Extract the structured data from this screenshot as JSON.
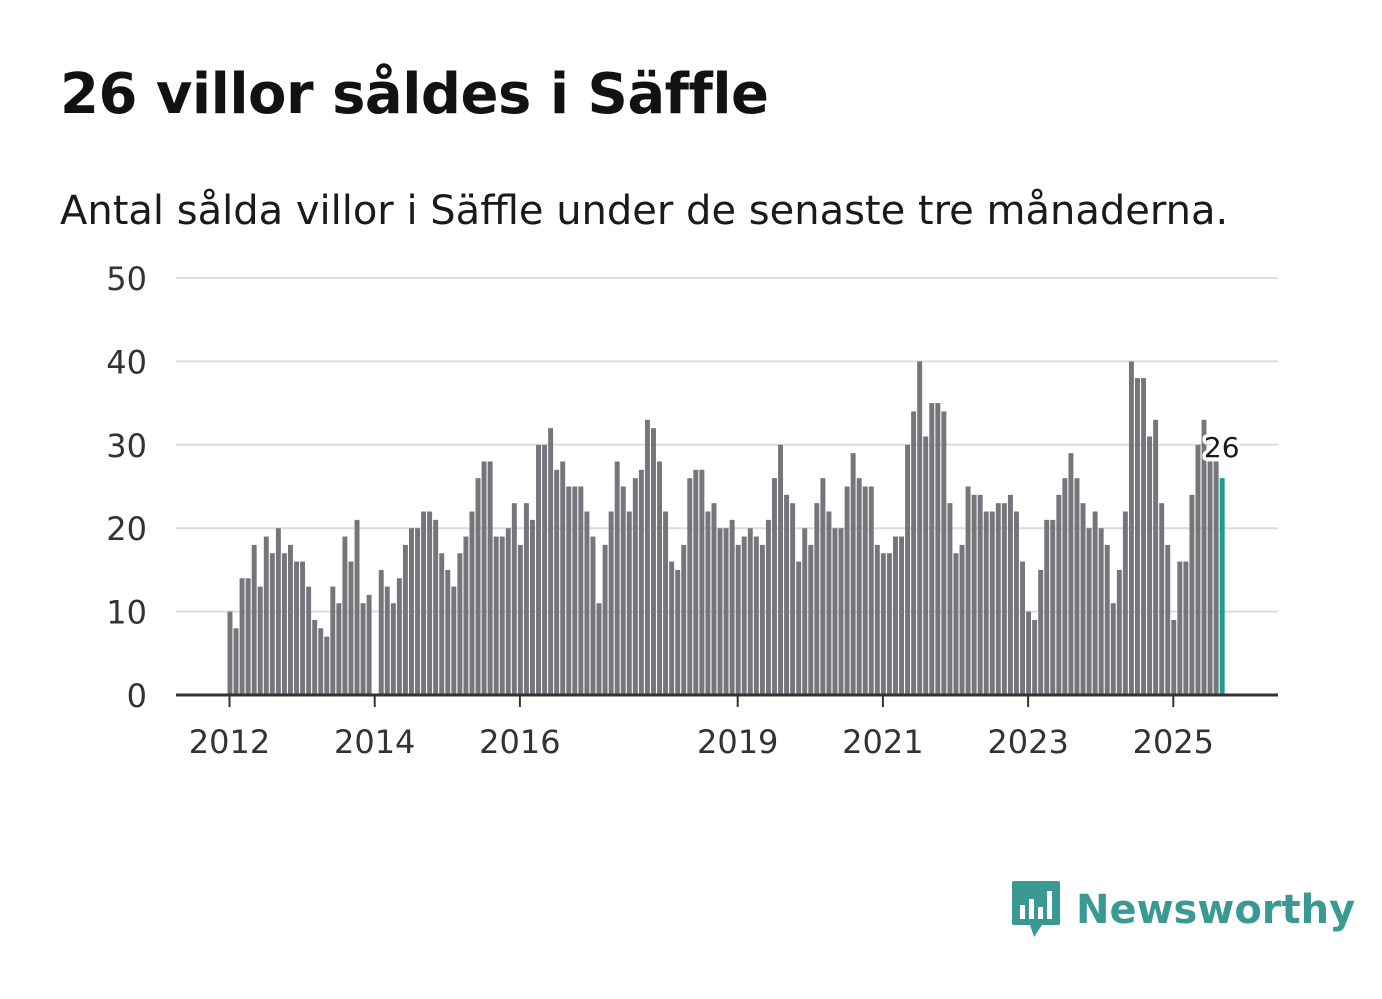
{
  "title": "26 villor såldes i Säffle",
  "subtitle": "Antal sålda villor i Säffle under de senaste tre månaderna.",
  "brand": {
    "name": "Newsworthy",
    "color": "#3a9a93"
  },
  "colors": {
    "bar": "#75757b",
    "highlight": "#1f9a92",
    "grid": "#dddddd",
    "axis": "#333333"
  },
  "chart_data": {
    "type": "bar",
    "title": "26 villor såldes i Säffle",
    "xlabel": "",
    "ylabel": "",
    "ylim": [
      0,
      50
    ],
    "yticks": [
      0,
      10,
      20,
      30,
      40,
      50
    ],
    "xticks": [
      "2012",
      "2014",
      "2016",
      "2019",
      "2021",
      "2023",
      "2025"
    ],
    "start": "2012-01",
    "highlight_label": "26",
    "values": [
      10,
      8,
      14,
      14,
      18,
      13,
      19,
      17,
      20,
      17,
      18,
      16,
      16,
      13,
      9,
      8,
      7,
      13,
      11,
      19,
      16,
      21,
      11,
      12,
      0,
      15,
      13,
      11,
      14,
      18,
      20,
      20,
      22,
      22,
      21,
      17,
      15,
      13,
      17,
      19,
      22,
      26,
      28,
      28,
      19,
      19,
      20,
      23,
      18,
      23,
      21,
      30,
      30,
      32,
      27,
      28,
      25,
      25,
      25,
      22,
      19,
      11,
      18,
      22,
      28,
      25,
      22,
      26,
      27,
      33,
      32,
      28,
      22,
      16,
      15,
      18,
      26,
      27,
      27,
      22,
      23,
      20,
      20,
      21,
      18,
      19,
      20,
      19,
      18,
      21,
      26,
      30,
      24,
      23,
      16,
      20,
      18,
      23,
      26,
      22,
      20,
      20,
      25,
      29,
      26,
      25,
      25,
      18,
      17,
      17,
      19,
      19,
      30,
      34,
      40,
      31,
      35,
      35,
      34,
      23,
      17,
      18,
      25,
      24,
      24,
      22,
      22,
      23,
      23,
      24,
      22,
      16,
      10,
      9,
      15,
      21,
      21,
      24,
      26,
      29,
      26,
      23,
      20,
      22,
      20,
      18,
      11,
      15,
      22,
      40,
      38,
      38,
      31,
      33,
      23,
      18,
      9,
      16,
      16,
      24,
      30,
      33,
      28,
      28,
      26
    ]
  }
}
